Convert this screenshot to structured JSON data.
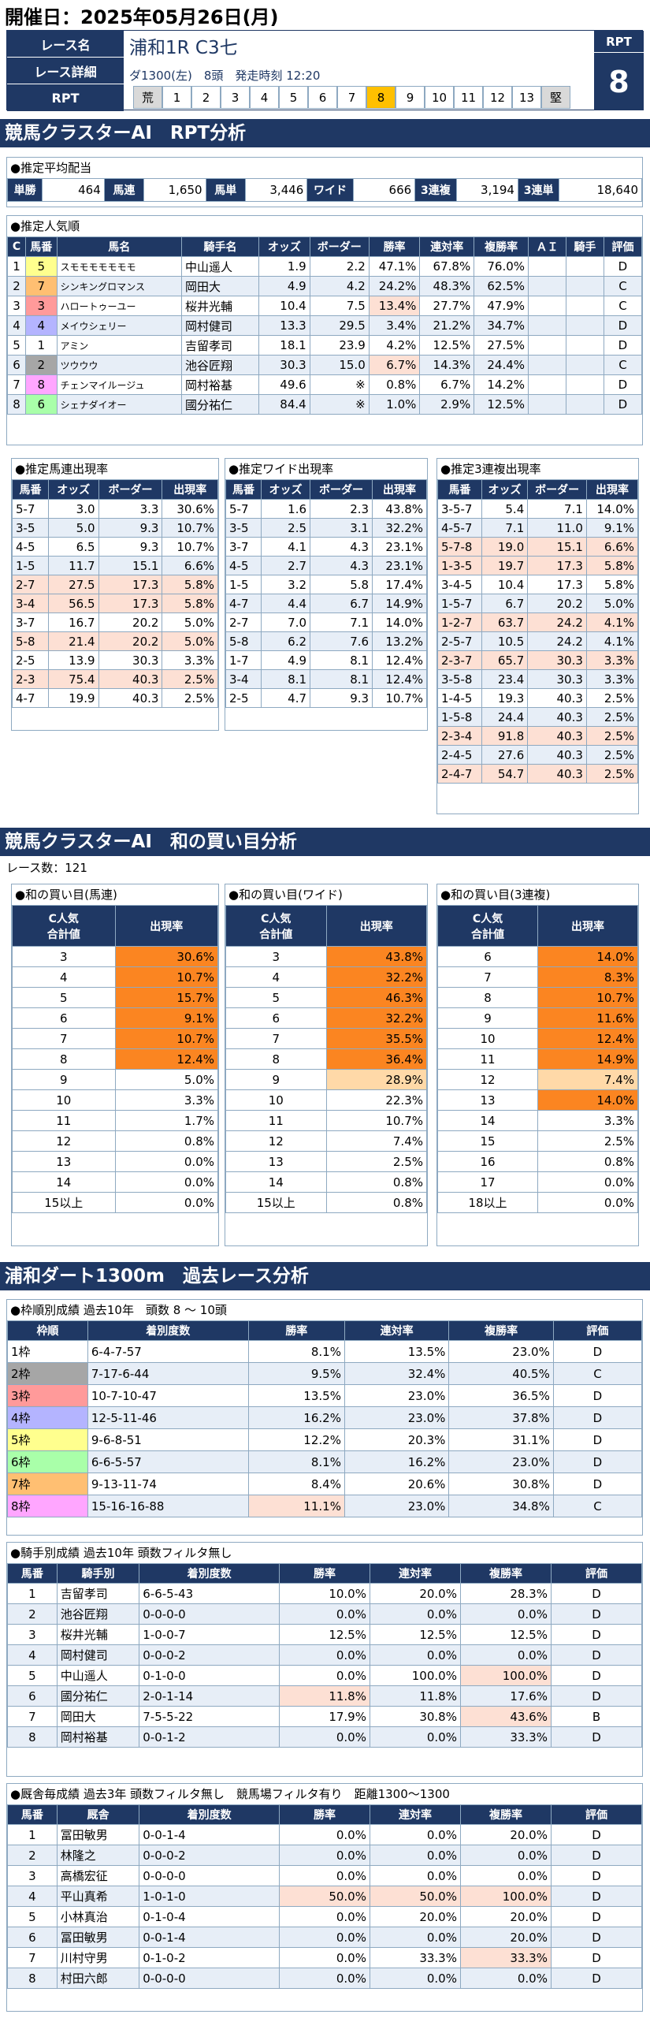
{
  "header": {
    "date": "開催日：2025年05月26日(月)"
  },
  "race": {
    "name_label": "レース名",
    "detail_label": "レース詳細",
    "rpt_label": "RPT",
    "name": "浦和1R C3七",
    "detail": "ダ1300(左)　8頭　発走時刻 12:20",
    "rpt_head": "RPT",
    "rpt_value": "8",
    "scale": [
      "荒",
      "1",
      "2",
      "3",
      "4",
      "5",
      "6",
      "7",
      "8",
      "9",
      "10",
      "11",
      "12",
      "13",
      "堅"
    ],
    "scale_selected": "8"
  },
  "section1": {
    "title": "競馬クラスターAI　RPT分析"
  },
  "payout": {
    "caption": "●推定平均配当",
    "items": [
      {
        "label": "単勝",
        "value": "464"
      },
      {
        "label": "馬連",
        "value": "1,650"
      },
      {
        "label": "馬単",
        "value": "3,446"
      },
      {
        "label": "ワイド",
        "value": "666"
      },
      {
        "label": "3連複",
        "value": "3,194"
      },
      {
        "label": "3連単",
        "value": "18,640"
      }
    ]
  },
  "popularity": {
    "caption": "●推定人気順",
    "headers": [
      "C",
      "馬番",
      "馬名",
      "騎手名",
      "オッズ",
      "ボーダー",
      "勝率",
      "連対率",
      "複勝率",
      "ＡＩ",
      "騎手",
      "評価"
    ],
    "rows": [
      [
        "1",
        "5",
        "スモモモモモモモ",
        "中山遥人",
        "1.9",
        "2.2",
        "47.1%",
        "67.8%",
        "76.0%",
        "",
        "",
        "D"
      ],
      [
        "2",
        "7",
        "シンキングロマンス",
        "岡田大",
        "4.9",
        "4.2",
        "24.2%",
        "48.3%",
        "62.5%",
        "",
        "",
        "C"
      ],
      [
        "3",
        "3",
        "ハロートゥーユー",
        "桜井光輔",
        "10.4",
        "7.5",
        "13.4%",
        "27.7%",
        "47.9%",
        "",
        "",
        "C"
      ],
      [
        "4",
        "4",
        "メイウシェリー",
        "岡村健司",
        "13.3",
        "29.5",
        "3.4%",
        "21.2%",
        "34.7%",
        "",
        "",
        "D"
      ],
      [
        "5",
        "1",
        "アミン",
        "吉留孝司",
        "18.1",
        "23.9",
        "4.2%",
        "12.5%",
        "27.5%",
        "",
        "",
        "D"
      ],
      [
        "6",
        "2",
        "ツウウウ",
        "池谷匠翔",
        "30.3",
        "15.0",
        "6.7%",
        "14.3%",
        "24.4%",
        "",
        "",
        "C"
      ],
      [
        "7",
        "8",
        "チェンマイルージュ",
        "岡村裕基",
        "49.6",
        "※",
        "0.8%",
        "6.7%",
        "14.2%",
        "",
        "",
        "D"
      ],
      [
        "8",
        "6",
        "シェナダイオー",
        "國分祐仁",
        "84.4",
        "※",
        "1.0%",
        "2.9%",
        "12.5%",
        "",
        "",
        "D"
      ]
    ]
  },
  "umaren": {
    "caption": "●推定馬連出現率",
    "headers": [
      "馬番",
      "オッズ",
      "ボーダー",
      "出現率"
    ],
    "rows": [
      [
        "5-7",
        "3.0",
        "3.3",
        "30.6%"
      ],
      [
        "3-5",
        "5.0",
        "9.3",
        "10.7%"
      ],
      [
        "4-5",
        "6.5",
        "9.3",
        "10.7%"
      ],
      [
        "1-5",
        "11.7",
        "15.1",
        "6.6%"
      ],
      [
        "2-7",
        "27.5",
        "17.3",
        "5.8%"
      ],
      [
        "3-4",
        "56.5",
        "17.3",
        "5.8%"
      ],
      [
        "3-7",
        "16.7",
        "20.2",
        "5.0%"
      ],
      [
        "5-8",
        "21.4",
        "20.2",
        "5.0%"
      ],
      [
        "2-5",
        "13.9",
        "30.3",
        "3.3%"
      ],
      [
        "2-3",
        "75.4",
        "40.3",
        "2.5%"
      ],
      [
        "4-7",
        "19.9",
        "40.3",
        "2.5%"
      ]
    ]
  },
  "wide": {
    "caption": "●推定ワイド出現率",
    "headers": [
      "馬番",
      "オッズ",
      "ボーダー",
      "出現率"
    ],
    "rows": [
      [
        "5-7",
        "1.6",
        "2.3",
        "43.8%"
      ],
      [
        "3-5",
        "2.5",
        "3.1",
        "32.2%"
      ],
      [
        "3-7",
        "4.1",
        "4.3",
        "23.1%"
      ],
      [
        "4-5",
        "2.7",
        "4.3",
        "23.1%"
      ],
      [
        "1-5",
        "3.2",
        "5.8",
        "17.4%"
      ],
      [
        "4-7",
        "4.4",
        "6.7",
        "14.9%"
      ],
      [
        "2-7",
        "7.0",
        "7.1",
        "14.0%"
      ],
      [
        "5-8",
        "6.2",
        "7.6",
        "13.2%"
      ],
      [
        "1-7",
        "4.9",
        "8.1",
        "12.4%"
      ],
      [
        "3-4",
        "8.1",
        "8.1",
        "12.4%"
      ],
      [
        "2-5",
        "4.7",
        "9.3",
        "10.7%"
      ]
    ]
  },
  "trio": {
    "caption": "●推定3連複出現率",
    "headers": [
      "馬番",
      "オッズ",
      "ボーダー",
      "出現率"
    ],
    "rows": [
      [
        "3-5-7",
        "5.4",
        "7.1",
        "14.0%"
      ],
      [
        "4-5-7",
        "7.1",
        "11.0",
        "9.1%"
      ],
      [
        "5-7-8",
        "19.0",
        "15.1",
        "6.6%"
      ],
      [
        "1-3-5",
        "19.7",
        "17.3",
        "5.8%"
      ],
      [
        "3-4-5",
        "10.4",
        "17.3",
        "5.8%"
      ],
      [
        "1-5-7",
        "6.7",
        "20.2",
        "5.0%"
      ],
      [
        "1-2-7",
        "63.7",
        "24.2",
        "4.1%"
      ],
      [
        "2-5-7",
        "10.5",
        "24.2",
        "4.1%"
      ],
      [
        "2-3-7",
        "65.7",
        "30.3",
        "3.3%"
      ],
      [
        "3-5-8",
        "23.4",
        "30.3",
        "3.3%"
      ],
      [
        "1-4-5",
        "19.3",
        "40.3",
        "2.5%"
      ],
      [
        "1-5-8",
        "24.4",
        "40.3",
        "2.5%"
      ],
      [
        "2-3-4",
        "91.8",
        "40.3",
        "2.5%"
      ],
      [
        "2-4-5",
        "27.6",
        "40.3",
        "2.5%"
      ],
      [
        "2-4-7",
        "54.7",
        "40.3",
        "2.5%"
      ]
    ]
  },
  "section2": {
    "title": "競馬クラスターAI　和の買い目分析",
    "race_count": "レース数：121"
  },
  "wa_umaren": {
    "caption": "●和の買い目(馬連)",
    "h1": "C人気\n合計値",
    "h2": "出現率",
    "rows": [
      [
        "3",
        "30.6%"
      ],
      [
        "4",
        "10.7%"
      ],
      [
        "5",
        "15.7%"
      ],
      [
        "6",
        "9.1%"
      ],
      [
        "7",
        "10.7%"
      ],
      [
        "8",
        "12.4%"
      ],
      [
        "9",
        "5.0%"
      ],
      [
        "10",
        "3.3%"
      ],
      [
        "11",
        "1.7%"
      ],
      [
        "12",
        "0.8%"
      ],
      [
        "13",
        "0.0%"
      ],
      [
        "14",
        "0.0%"
      ],
      [
        "15以上",
        "0.0%"
      ]
    ]
  },
  "wa_wide": {
    "caption": "●和の買い目(ワイド)",
    "h1": "C人気\n合計値",
    "h2": "出現率",
    "rows": [
      [
        "3",
        "43.8%"
      ],
      [
        "4",
        "32.2%"
      ],
      [
        "5",
        "46.3%"
      ],
      [
        "6",
        "32.2%"
      ],
      [
        "7",
        "35.5%"
      ],
      [
        "8",
        "36.4%"
      ],
      [
        "9",
        "28.9%"
      ],
      [
        "10",
        "22.3%"
      ],
      [
        "11",
        "10.7%"
      ],
      [
        "12",
        "7.4%"
      ],
      [
        "13",
        "2.5%"
      ],
      [
        "14",
        "0.8%"
      ],
      [
        "15以上",
        "0.8%"
      ]
    ]
  },
  "wa_trio": {
    "caption": "●和の買い目(3連複)",
    "h1": "C人気\n合計値",
    "h2": "出現率",
    "rows": [
      [
        "6",
        "14.0%"
      ],
      [
        "7",
        "8.3%"
      ],
      [
        "8",
        "10.7%"
      ],
      [
        "9",
        "11.6%"
      ],
      [
        "10",
        "12.4%"
      ],
      [
        "11",
        "14.9%"
      ],
      [
        "12",
        "7.4%"
      ],
      [
        "13",
        "14.0%"
      ],
      [
        "14",
        "3.3%"
      ],
      [
        "15",
        "2.5%"
      ],
      [
        "16",
        "0.8%"
      ],
      [
        "17",
        "0.0%"
      ],
      [
        "18以上",
        "0.0%"
      ]
    ]
  },
  "section3": {
    "title": "浦和ダート1300m　過去レース分析"
  },
  "waku": {
    "caption": "●枠順別成績 過去10年　頭数 8 ～ 10頭",
    "headers": [
      "枠順",
      "着別度数",
      "勝率",
      "連対率",
      "複勝率",
      "評価"
    ],
    "rows": [
      [
        "1枠",
        "6-4-7-57",
        "8.1%",
        "13.5%",
        "23.0%",
        "D"
      ],
      [
        "2枠",
        "7-17-6-44",
        "9.5%",
        "32.4%",
        "40.5%",
        "C"
      ],
      [
        "3枠",
        "10-7-10-47",
        "13.5%",
        "23.0%",
        "36.5%",
        "D"
      ],
      [
        "4枠",
        "12-5-11-46",
        "16.2%",
        "23.0%",
        "37.8%",
        "D"
      ],
      [
        "5枠",
        "9-6-8-51",
        "12.2%",
        "20.3%",
        "31.1%",
        "D"
      ],
      [
        "6枠",
        "6-6-5-57",
        "8.1%",
        "16.2%",
        "23.0%",
        "D"
      ],
      [
        "7枠",
        "9-13-11-74",
        "8.4%",
        "20.6%",
        "30.8%",
        "D"
      ],
      [
        "8枠",
        "15-16-16-88",
        "11.1%",
        "23.0%",
        "34.8%",
        "C"
      ]
    ]
  },
  "jockey": {
    "caption": "●騎手別成績 過去10年 頭数フィルタ無し",
    "headers": [
      "馬番",
      "騎手別",
      "着別度数",
      "勝率",
      "連対率",
      "複勝率",
      "評価"
    ],
    "rows": [
      [
        "1",
        "吉留孝司",
        "6-6-5-43",
        "10.0%",
        "20.0%",
        "28.3%",
        "D"
      ],
      [
        "2",
        "池谷匠翔",
        "0-0-0-0",
        "0.0%",
        "0.0%",
        "0.0%",
        "D"
      ],
      [
        "3",
        "桜井光輔",
        "1-0-0-7",
        "12.5%",
        "12.5%",
        "12.5%",
        "D"
      ],
      [
        "4",
        "岡村健司",
        "0-0-0-2",
        "0.0%",
        "0.0%",
        "0.0%",
        "D"
      ],
      [
        "5",
        "中山遥人",
        "0-1-0-0",
        "0.0%",
        "100.0%",
        "100.0%",
        "D"
      ],
      [
        "6",
        "國分祐仁",
        "2-0-1-14",
        "11.8%",
        "11.8%",
        "17.6%",
        "D"
      ],
      [
        "7",
        "岡田大",
        "7-5-5-22",
        "17.9%",
        "30.8%",
        "43.6%",
        "B"
      ],
      [
        "8",
        "岡村裕基",
        "0-0-1-2",
        "0.0%",
        "0.0%",
        "33.3%",
        "D"
      ]
    ]
  },
  "trainer": {
    "caption": "●厩舎毎成績 過去3年 頭数フィルタ無し　競馬場フィルタ有り　距離1300～1300",
    "headers": [
      "馬番",
      "厩舎",
      "着別度数",
      "勝率",
      "連対率",
      "複勝率",
      "評価"
    ],
    "rows": [
      [
        "1",
        "冨田敏男",
        "0-0-1-4",
        "0.0%",
        "0.0%",
        "20.0%",
        "D"
      ],
      [
        "2",
        "林隆之",
        "0-0-0-2",
        "0.0%",
        "0.0%",
        "0.0%",
        "D"
      ],
      [
        "3",
        "高橋宏征",
        "0-0-0-0",
        "0.0%",
        "0.0%",
        "0.0%",
        "D"
      ],
      [
        "4",
        "平山真希",
        "1-0-1-0",
        "50.0%",
        "50.0%",
        "100.0%",
        "D"
      ],
      [
        "5",
        "小林真治",
        "0-1-0-4",
        "0.0%",
        "20.0%",
        "20.0%",
        "D"
      ],
      [
        "6",
        "冨田敏男",
        "0-0-1-4",
        "0.0%",
        "0.0%",
        "20.0%",
        "D"
      ],
      [
        "7",
        "川村守男",
        "0-1-0-2",
        "0.0%",
        "33.3%",
        "33.3%",
        "D"
      ],
      [
        "8",
        "村田六郎",
        "0-0-0-0",
        "0.0%",
        "0.0%",
        "0.0%",
        "D"
      ]
    ]
  }
}
